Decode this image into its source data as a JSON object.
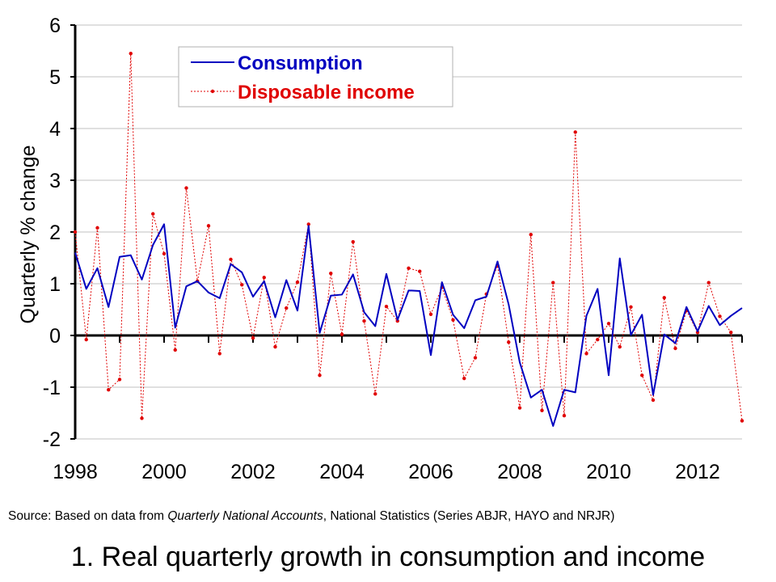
{
  "colors": {
    "consumption": "#0000c0",
    "income": "#e00000",
    "axis": "#000000",
    "grid": "#c0c0c0"
  },
  "source": {
    "prefix": "Source: Based on data from ",
    "italic": "Quarterly National Accounts",
    "suffix": ", National Statistics (Series ABJR, HAYO and NRJR)"
  },
  "caption": "1. Real quarterly growth in consumption and income",
  "chart_data": {
    "type": "line",
    "ylabel": "Quarterly % change",
    "ylim": [
      -2,
      6
    ],
    "yticks": [
      -2,
      -1,
      0,
      1,
      2,
      3,
      4,
      5,
      6
    ],
    "xlim": [
      1998,
      2013
    ],
    "xticks": [
      "1998",
      "2000",
      "2002",
      "2004",
      "2006",
      "2008",
      "2010",
      "2012"
    ],
    "grid": "horizontal",
    "legend_position": "top-left",
    "x": [
      1998.0,
      1998.25,
      1998.5,
      1998.75,
      1999.0,
      1999.25,
      1999.5,
      1999.75,
      2000.0,
      2000.25,
      2000.5,
      2000.75,
      2001.0,
      2001.25,
      2001.5,
      2001.75,
      2002.0,
      2002.25,
      2002.5,
      2002.75,
      2003.0,
      2003.25,
      2003.5,
      2003.75,
      2004.0,
      2004.25,
      2004.5,
      2004.75,
      2005.0,
      2005.25,
      2005.5,
      2005.75,
      2006.0,
      2006.25,
      2006.5,
      2006.75,
      2007.0,
      2007.25,
      2007.5,
      2007.75,
      2008.0,
      2008.25,
      2008.5,
      2008.75,
      2009.0,
      2009.25,
      2009.5,
      2009.75,
      2010.0,
      2010.25,
      2010.5,
      2010.75,
      2011.0,
      2011.25,
      2011.5,
      2011.75,
      2012.0,
      2012.25,
      2012.5,
      2012.75,
      2013.0
    ],
    "series": [
      {
        "name": "Consumption",
        "style": "solid",
        "values": [
          1.6,
          0.9,
          1.3,
          0.55,
          1.52,
          1.55,
          1.08,
          1.75,
          2.15,
          0.15,
          0.95,
          1.05,
          0.83,
          0.72,
          1.38,
          1.22,
          0.75,
          1.05,
          0.35,
          1.07,
          0.48,
          2.12,
          0.05,
          0.77,
          0.79,
          1.18,
          0.45,
          0.18,
          1.19,
          0.3,
          0.87,
          0.86,
          -0.38,
          1.03,
          0.4,
          0.14,
          0.68,
          0.75,
          1.43,
          0.6,
          -0.52,
          -1.2,
          -1.05,
          -1.75,
          -1.05,
          -1.1,
          0.38,
          0.9,
          -0.77,
          1.49,
          0.01,
          0.4,
          -1.15,
          0.02,
          -0.15,
          0.55,
          0.08,
          0.57,
          0.2,
          0.38,
          0.53
        ]
      },
      {
        "name": "Disposable income",
        "style": "dotted",
        "values": [
          2.0,
          -0.08,
          2.08,
          -1.05,
          -0.85,
          5.45,
          -1.6,
          2.35,
          1.58,
          -0.28,
          2.85,
          1.05,
          2.12,
          -0.35,
          1.47,
          0.98,
          -0.05,
          1.12,
          -0.22,
          0.53,
          1.03,
          2.15,
          -0.77,
          1.2,
          0.02,
          1.81,
          0.28,
          -1.13,
          0.56,
          0.28,
          1.3,
          1.24,
          0.41,
          0.93,
          0.3,
          -0.83,
          -0.43,
          0.8,
          1.35,
          -0.13,
          -1.4,
          1.95,
          -1.45,
          1.02,
          -1.55,
          3.93,
          -0.35,
          -0.08,
          0.23,
          -0.22,
          0.55,
          -0.77,
          -1.25,
          0.73,
          -0.25,
          0.48,
          0.06,
          1.02,
          0.37,
          0.06,
          -1.65
        ]
      }
    ]
  }
}
